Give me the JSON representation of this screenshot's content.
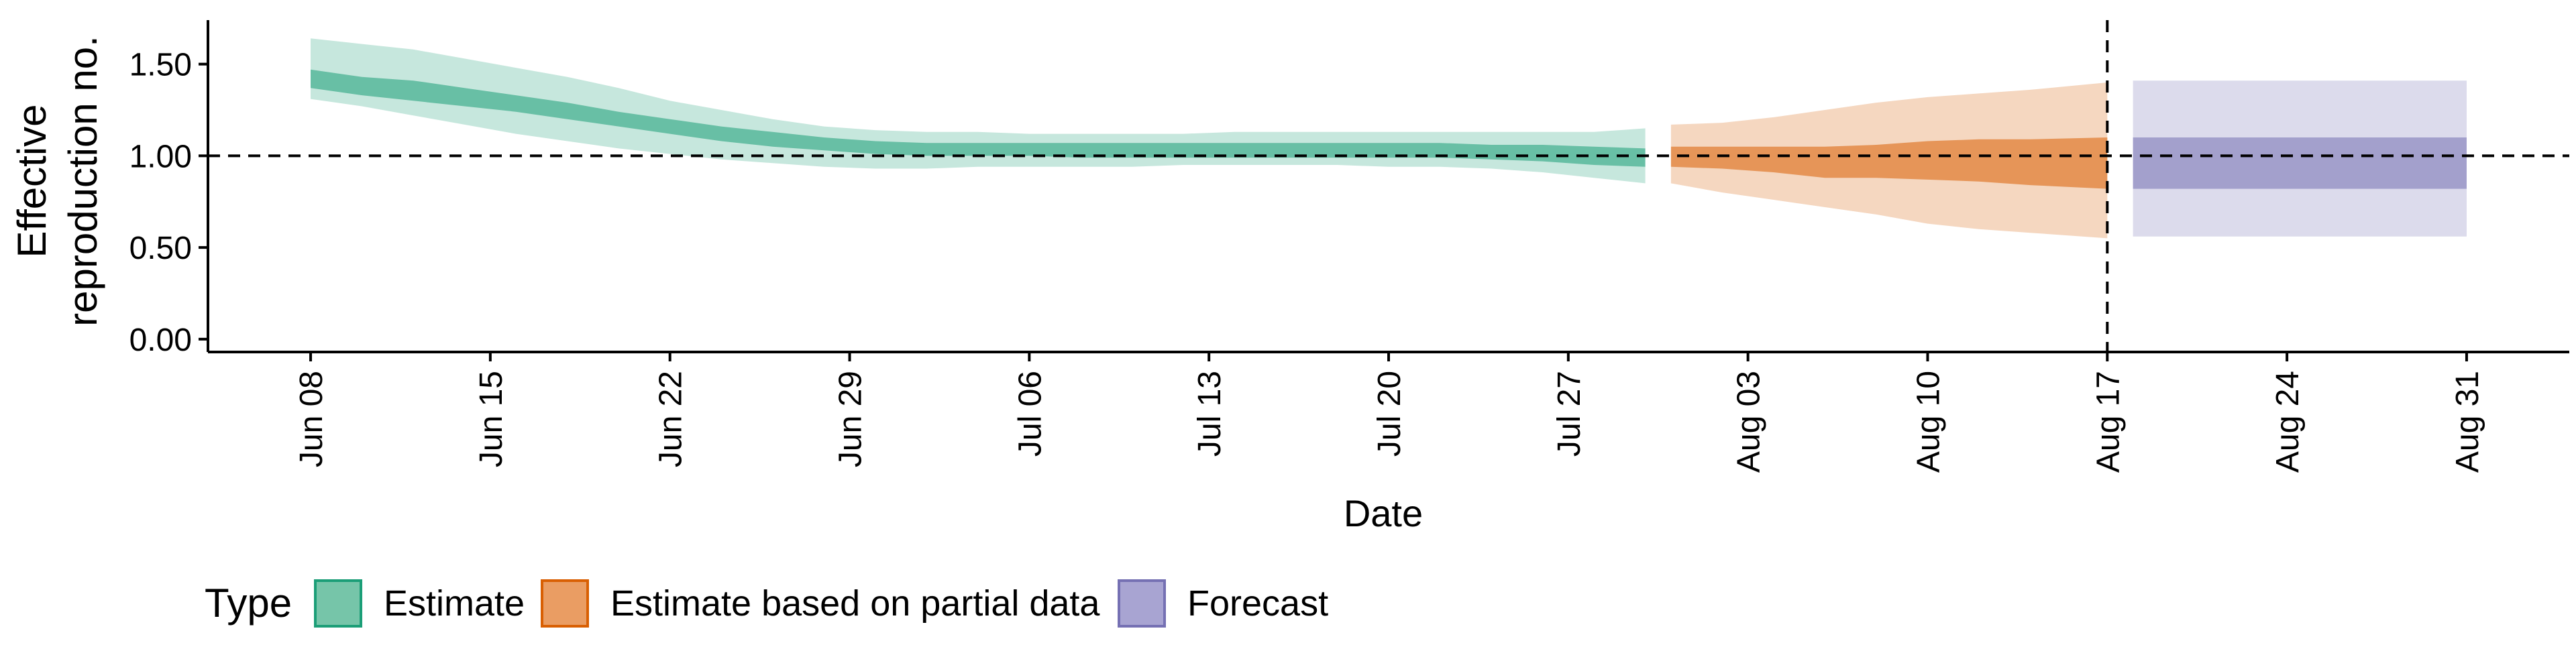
{
  "chart_data": {
    "type": "area",
    "xlabel": "Date",
    "ylabel": "Effective reproduction no.",
    "ylabel_lines": [
      "Effective",
      "reproduction no."
    ],
    "x_ticks": [
      "Jun 08",
      "Jun 15",
      "Jun 22",
      "Jun 29",
      "Jul 06",
      "Jul 13",
      "Jul 20",
      "Jul 27",
      "Aug 03",
      "Aug 10",
      "Aug 17",
      "Aug 24",
      "Aug 31"
    ],
    "y_ticks": [
      "0.00",
      "0.50",
      "1.00",
      "1.50"
    ],
    "ylim": [
      -0.07,
      1.74
    ],
    "xlim": [
      "2020-06-04",
      "2020-09-04"
    ],
    "hline": 1.0,
    "vline": "2020-08-17",
    "grid": false,
    "legend": {
      "title": "Type",
      "position": "bottom-left",
      "entries": [
        {
          "label": "Estimate",
          "fill": "#76c5a9",
          "stroke": "#1b9e77"
        },
        {
          "label": "Estimate based on partial data",
          "fill": "#ea9d63",
          "stroke": "#d95f02"
        },
        {
          "label": "Forecast",
          "fill": "#a8a4d2",
          "stroke": "#7570b3"
        }
      ]
    },
    "series": [
      {
        "name": "Estimate",
        "color": "#1b9e77",
        "x": [
          "2020-06-08",
          "2020-06-10",
          "2020-06-12",
          "2020-06-14",
          "2020-06-16",
          "2020-06-18",
          "2020-06-20",
          "2020-06-22",
          "2020-06-24",
          "2020-06-26",
          "2020-06-28",
          "2020-06-30",
          "2020-07-02",
          "2020-07-04",
          "2020-07-06",
          "2020-07-08",
          "2020-07-10",
          "2020-07-12",
          "2020-07-14",
          "2020-07-16",
          "2020-07-18",
          "2020-07-20",
          "2020-07-22",
          "2020-07-24",
          "2020-07-26",
          "2020-07-28",
          "2020-07-30"
        ],
        "median": [
          1.42,
          1.38,
          1.35,
          1.32,
          1.28,
          1.25,
          1.2,
          1.16,
          1.12,
          1.09,
          1.06,
          1.05,
          1.04,
          1.03,
          1.03,
          1.03,
          1.03,
          1.03,
          1.03,
          1.03,
          1.03,
          1.03,
          1.03,
          1.02,
          1.02,
          1.0,
          0.99
        ],
        "lower_50": [
          1.37,
          1.33,
          1.3,
          1.27,
          1.24,
          1.2,
          1.16,
          1.12,
          1.08,
          1.05,
          1.03,
          1.01,
          1.0,
          1.0,
          1.0,
          0.99,
          0.99,
          0.99,
          0.99,
          0.99,
          0.99,
          0.99,
          0.99,
          0.98,
          0.97,
          0.95,
          0.94
        ],
        "upper_50": [
          1.47,
          1.43,
          1.41,
          1.37,
          1.33,
          1.29,
          1.24,
          1.2,
          1.16,
          1.13,
          1.1,
          1.08,
          1.07,
          1.07,
          1.07,
          1.07,
          1.07,
          1.07,
          1.07,
          1.07,
          1.07,
          1.07,
          1.07,
          1.06,
          1.06,
          1.05,
          1.04
        ],
        "lower_90": [
          1.31,
          1.27,
          1.22,
          1.17,
          1.12,
          1.08,
          1.04,
          1.01,
          0.98,
          0.96,
          0.94,
          0.93,
          0.93,
          0.94,
          0.94,
          0.94,
          0.94,
          0.95,
          0.95,
          0.95,
          0.95,
          0.94,
          0.94,
          0.93,
          0.91,
          0.88,
          0.85
        ],
        "upper_90": [
          1.64,
          1.61,
          1.58,
          1.53,
          1.48,
          1.43,
          1.37,
          1.3,
          1.25,
          1.2,
          1.16,
          1.14,
          1.13,
          1.13,
          1.12,
          1.12,
          1.12,
          1.12,
          1.13,
          1.13,
          1.13,
          1.13,
          1.13,
          1.13,
          1.13,
          1.13,
          1.15
        ]
      },
      {
        "name": "Estimate based on partial data",
        "color": "#d95f02",
        "x": [
          "2020-07-31",
          "2020-08-02",
          "2020-08-04",
          "2020-08-06",
          "2020-08-08",
          "2020-08-10",
          "2020-08-12",
          "2020-08-14",
          "2020-08-17"
        ],
        "median": [
          0.99,
          0.98,
          0.97,
          0.96,
          0.97,
          0.98,
          0.97,
          0.96,
          0.96
        ],
        "lower_50": [
          0.94,
          0.93,
          0.91,
          0.88,
          0.88,
          0.87,
          0.86,
          0.84,
          0.82
        ],
        "upper_50": [
          1.05,
          1.05,
          1.05,
          1.05,
          1.06,
          1.08,
          1.09,
          1.09,
          1.1
        ],
        "lower_90": [
          0.85,
          0.8,
          0.76,
          0.72,
          0.68,
          0.63,
          0.6,
          0.58,
          0.55
        ],
        "upper_90": [
          1.17,
          1.18,
          1.21,
          1.25,
          1.29,
          1.32,
          1.34,
          1.36,
          1.4
        ]
      },
      {
        "name": "Forecast",
        "color": "#7570b3",
        "x": [
          "2020-08-18",
          "2020-08-31"
        ],
        "median": [
          0.96,
          0.96
        ],
        "lower_50": [
          0.82,
          0.82
        ],
        "upper_50": [
          1.1,
          1.1
        ],
        "lower_90": [
          0.56,
          0.56
        ],
        "upper_90": [
          1.41,
          1.41
        ]
      }
    ]
  }
}
